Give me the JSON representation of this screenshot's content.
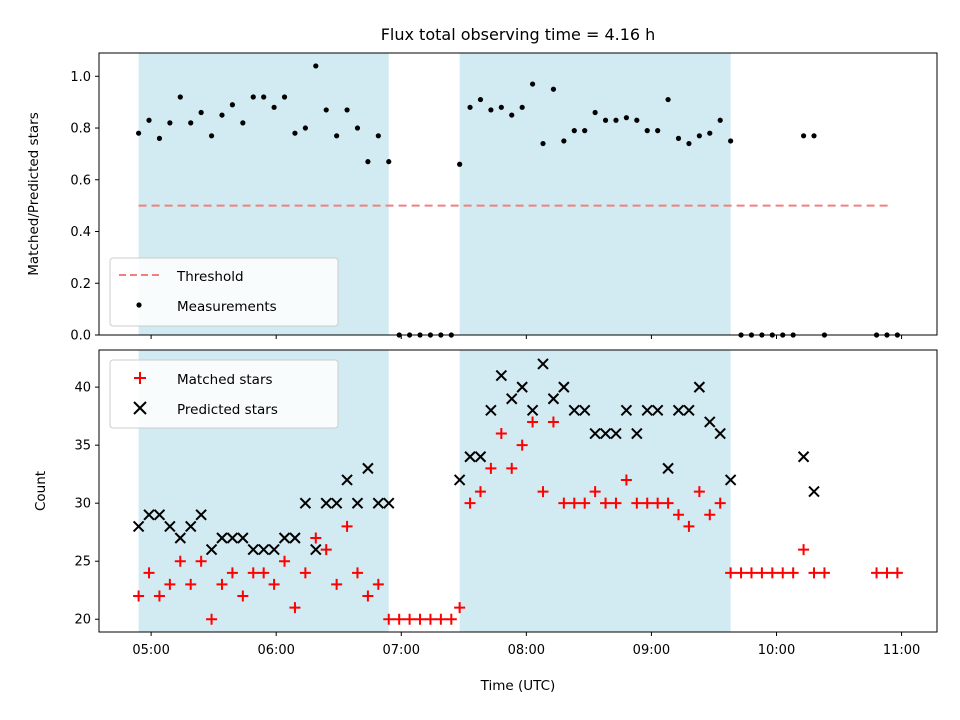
{
  "chart_data": [
    {
      "type": "scatter",
      "title": "Flux total observing time = 4.16 h",
      "xlabel": "",
      "ylabel": "Matched/Predicted stars",
      "xlim": [
        "04:35",
        "11:17"
      ],
      "ylim": [
        0.0,
        1.09
      ],
      "y_ticks": [
        "0.0",
        "0.2",
        "0.4",
        "0.6",
        "0.8",
        "1.0"
      ],
      "shaded_intervals": [
        [
          "04:54",
          "06:54"
        ],
        [
          "07:28",
          "09:38"
        ]
      ],
      "shade_color": "#add8e6",
      "threshold": {
        "name": "Threshold",
        "y": 0.5,
        "x_range": [
          "04:54",
          "10:55"
        ],
        "color": "#f08080",
        "style": "dashed"
      },
      "series": [
        {
          "name": "Measurements",
          "color": "#000000",
          "marker": "dot",
          "points": [
            [
              "04:54",
              0.78
            ],
            [
              "04:59",
              0.83
            ],
            [
              "05:04",
              0.76
            ],
            [
              "05:09",
              0.82
            ],
            [
              "05:14",
              0.92
            ],
            [
              "05:19",
              0.82
            ],
            [
              "05:24",
              0.86
            ],
            [
              "05:29",
              0.77
            ],
            [
              "05:34",
              0.85
            ],
            [
              "05:39",
              0.89
            ],
            [
              "05:44",
              0.82
            ],
            [
              "05:49",
              0.92
            ],
            [
              "05:54",
              0.92
            ],
            [
              "05:59",
              0.88
            ],
            [
              "06:04",
              0.92
            ],
            [
              "06:09",
              0.78
            ],
            [
              "06:14",
              0.8
            ],
            [
              "06:19",
              1.04
            ],
            [
              "06:24",
              0.87
            ],
            [
              "06:29",
              0.77
            ],
            [
              "06:34",
              0.87
            ],
            [
              "06:39",
              0.8
            ],
            [
              "06:44",
              0.67
            ],
            [
              "06:49",
              0.77
            ],
            [
              "06:54",
              0.67
            ],
            [
              "06:59",
              0.0
            ],
            [
              "07:04",
              0.0
            ],
            [
              "07:09",
              0.0
            ],
            [
              "07:14",
              0.0
            ],
            [
              "07:19",
              0.0
            ],
            [
              "07:24",
              0.0
            ],
            [
              "07:28",
              0.66
            ],
            [
              "07:33",
              0.88
            ],
            [
              "07:38",
              0.91
            ],
            [
              "07:43",
              0.87
            ],
            [
              "07:48",
              0.88
            ],
            [
              "07:53",
              0.85
            ],
            [
              "07:58",
              0.88
            ],
            [
              "08:03",
              0.97
            ],
            [
              "08:08",
              0.74
            ],
            [
              "08:13",
              0.95
            ],
            [
              "08:18",
              0.75
            ],
            [
              "08:23",
              0.79
            ],
            [
              "08:28",
              0.79
            ],
            [
              "08:33",
              0.86
            ],
            [
              "08:38",
              0.83
            ],
            [
              "08:43",
              0.83
            ],
            [
              "08:48",
              0.84
            ],
            [
              "08:53",
              0.83
            ],
            [
              "08:58",
              0.79
            ],
            [
              "09:03",
              0.79
            ],
            [
              "09:08",
              0.91
            ],
            [
              "09:13",
              0.76
            ],
            [
              "09:18",
              0.74
            ],
            [
              "09:23",
              0.77
            ],
            [
              "09:28",
              0.78
            ],
            [
              "09:33",
              0.83
            ],
            [
              "09:38",
              0.75
            ],
            [
              "09:43",
              0.0
            ],
            [
              "09:48",
              0.0
            ],
            [
              "09:53",
              0.0
            ],
            [
              "09:58",
              0.0
            ],
            [
              "10:03",
              0.0
            ],
            [
              "10:08",
              0.0
            ],
            [
              "10:13",
              0.77
            ],
            [
              "10:18",
              0.77
            ],
            [
              "10:23",
              0.0
            ],
            [
              "10:48",
              0.0
            ],
            [
              "10:53",
              0.0
            ],
            [
              "10:58",
              0.0
            ]
          ]
        }
      ],
      "legend": {
        "placement": "lower-left",
        "entries": [
          "Threshold",
          "Measurements"
        ]
      }
    },
    {
      "type": "scatter",
      "title": "",
      "xlabel": "Time (UTC)",
      "ylabel": "Count",
      "xlim": [
        "04:35",
        "11:17"
      ],
      "ylim": [
        18.9,
        43.2
      ],
      "x_ticks": [
        "05:00",
        "06:00",
        "07:00",
        "08:00",
        "09:00",
        "10:00",
        "11:00"
      ],
      "y_ticks": [
        "20",
        "25",
        "30",
        "35",
        "40"
      ],
      "shaded_intervals": [
        [
          "04:54",
          "06:54"
        ],
        [
          "07:28",
          "09:38"
        ]
      ],
      "shade_color": "#add8e6",
      "series": [
        {
          "name": "Matched stars",
          "color": "#ff0000",
          "marker": "plus",
          "points": [
            [
              "04:54",
              22
            ],
            [
              "04:59",
              24
            ],
            [
              "05:04",
              22
            ],
            [
              "05:09",
              23
            ],
            [
              "05:14",
              25
            ],
            [
              "05:19",
              23
            ],
            [
              "05:24",
              25
            ],
            [
              "05:29",
              20
            ],
            [
              "05:34",
              23
            ],
            [
              "05:39",
              24
            ],
            [
              "05:44",
              22
            ],
            [
              "05:49",
              24
            ],
            [
              "05:54",
              24
            ],
            [
              "05:59",
              23
            ],
            [
              "06:04",
              25
            ],
            [
              "06:09",
              21
            ],
            [
              "06:14",
              24
            ],
            [
              "06:19",
              27
            ],
            [
              "06:24",
              26
            ],
            [
              "06:29",
              23
            ],
            [
              "06:34",
              28
            ],
            [
              "06:39",
              24
            ],
            [
              "06:44",
              22
            ],
            [
              "06:49",
              23
            ],
            [
              "06:54",
              20
            ],
            [
              "06:59",
              20
            ],
            [
              "07:04",
              20
            ],
            [
              "07:09",
              20
            ],
            [
              "07:14",
              20
            ],
            [
              "07:19",
              20
            ],
            [
              "07:24",
              20
            ],
            [
              "07:28",
              21
            ],
            [
              "07:33",
              30
            ],
            [
              "07:38",
              31
            ],
            [
              "07:43",
              33
            ],
            [
              "07:48",
              36
            ],
            [
              "07:53",
              33
            ],
            [
              "07:58",
              35
            ],
            [
              "08:03",
              37
            ],
            [
              "08:08",
              31
            ],
            [
              "08:13",
              37
            ],
            [
              "08:18",
              30
            ],
            [
              "08:23",
              30
            ],
            [
              "08:28",
              30
            ],
            [
              "08:33",
              31
            ],
            [
              "08:38",
              30
            ],
            [
              "08:43",
              30
            ],
            [
              "08:48",
              32
            ],
            [
              "08:53",
              30
            ],
            [
              "08:58",
              30
            ],
            [
              "09:03",
              30
            ],
            [
              "09:08",
              30
            ],
            [
              "09:13",
              29
            ],
            [
              "09:18",
              28
            ],
            [
              "09:23",
              31
            ],
            [
              "09:28",
              29
            ],
            [
              "09:33",
              30
            ],
            [
              "09:38",
              24
            ],
            [
              "09:43",
              24
            ],
            [
              "09:48",
              24
            ],
            [
              "09:53",
              24
            ],
            [
              "09:58",
              24
            ],
            [
              "10:03",
              24
            ],
            [
              "10:08",
              24
            ],
            [
              "10:13",
              26
            ],
            [
              "10:18",
              24
            ],
            [
              "10:23",
              24
            ],
            [
              "10:48",
              24
            ],
            [
              "10:53",
              24
            ],
            [
              "10:58",
              24
            ]
          ]
        },
        {
          "name": "Predicted stars",
          "color": "#000000",
          "marker": "x",
          "points": [
            [
              "04:54",
              28
            ],
            [
              "04:59",
              29
            ],
            [
              "05:04",
              29
            ],
            [
              "05:09",
              28
            ],
            [
              "05:14",
              27
            ],
            [
              "05:19",
              28
            ],
            [
              "05:24",
              29
            ],
            [
              "05:29",
              26
            ],
            [
              "05:34",
              27
            ],
            [
              "05:39",
              27
            ],
            [
              "05:44",
              27
            ],
            [
              "05:49",
              26
            ],
            [
              "05:54",
              26
            ],
            [
              "05:59",
              26
            ],
            [
              "06:04",
              27
            ],
            [
              "06:09",
              27
            ],
            [
              "06:14",
              30
            ],
            [
              "06:19",
              26
            ],
            [
              "06:24",
              30
            ],
            [
              "06:29",
              30
            ],
            [
              "06:34",
              32
            ],
            [
              "06:39",
              30
            ],
            [
              "06:44",
              33
            ],
            [
              "06:49",
              30
            ],
            [
              "06:54",
              30
            ],
            [
              "07:28",
              32
            ],
            [
              "07:33",
              34
            ],
            [
              "07:38",
              34
            ],
            [
              "07:43",
              38
            ],
            [
              "07:48",
              41
            ],
            [
              "07:53",
              39
            ],
            [
              "07:58",
              40
            ],
            [
              "08:03",
              38
            ],
            [
              "08:08",
              42
            ],
            [
              "08:13",
              39
            ],
            [
              "08:18",
              40
            ],
            [
              "08:23",
              38
            ],
            [
              "08:28",
              38
            ],
            [
              "08:33",
              36
            ],
            [
              "08:38",
              36
            ],
            [
              "08:43",
              36
            ],
            [
              "08:48",
              38
            ],
            [
              "08:53",
              36
            ],
            [
              "08:58",
              38
            ],
            [
              "09:03",
              38
            ],
            [
              "09:08",
              33
            ],
            [
              "09:13",
              38
            ],
            [
              "09:18",
              38
            ],
            [
              "09:23",
              40
            ],
            [
              "09:28",
              37
            ],
            [
              "09:33",
              36
            ],
            [
              "09:38",
              32
            ],
            [
              "10:13",
              34
            ],
            [
              "10:18",
              31
            ]
          ]
        }
      ],
      "legend": {
        "placement": "upper-left",
        "entries": [
          "Matched stars",
          "Predicted stars"
        ]
      }
    }
  ]
}
